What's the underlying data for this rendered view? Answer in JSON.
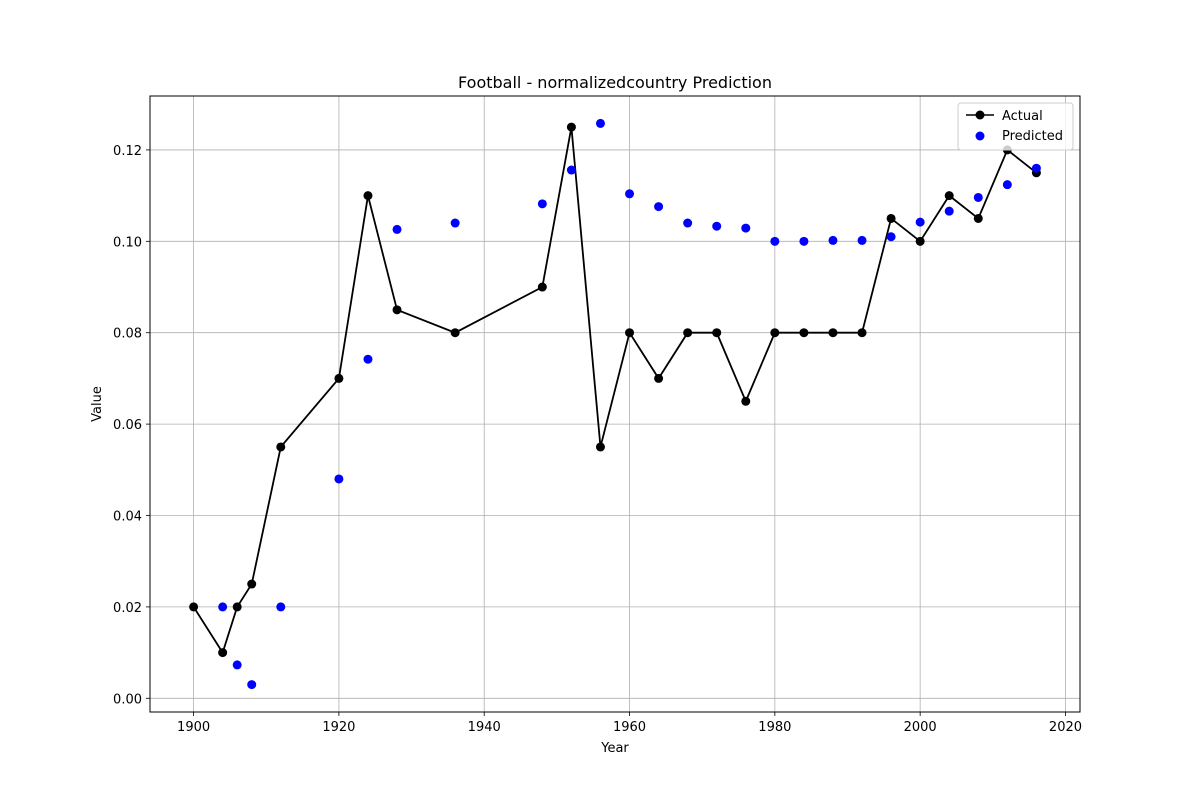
{
  "chart_data": {
    "type": "line",
    "title": "Football - normalizedcountry Prediction",
    "xlabel": "Year",
    "ylabel": "Value",
    "xlim": [
      1894,
      2022
    ],
    "ylim": [
      -0.003,
      0.1318
    ],
    "x_ticks": [
      1900,
      1920,
      1940,
      1960,
      1980,
      2000,
      2020
    ],
    "y_ticks": [
      0.0,
      0.02,
      0.04,
      0.06,
      0.08,
      0.1,
      0.12
    ],
    "y_tick_labels": [
      "0.00",
      "0.02",
      "0.04",
      "0.06",
      "0.08",
      "0.10",
      "0.12"
    ],
    "grid": true,
    "legend_position": "top-right",
    "colors": {
      "actual": "#000000",
      "predicted": "#0000ff"
    },
    "series": [
      {
        "name": "Actual",
        "style": "line-with-markers",
        "x": [
          1900,
          1904,
          1906,
          1908,
          1912,
          1920,
          1924,
          1928,
          1936,
          1948,
          1952,
          1956,
          1960,
          1964,
          1968,
          1972,
          1976,
          1980,
          1984,
          1988,
          1992,
          1996,
          2000,
          2004,
          2008,
          2012,
          2016
        ],
        "y": [
          0.02,
          0.01,
          0.02,
          0.025,
          0.055,
          0.07,
          0.11,
          0.085,
          0.08,
          0.09,
          0.125,
          0.055,
          0.08,
          0.07,
          0.08,
          0.08,
          0.065,
          0.08,
          0.08,
          0.08,
          0.08,
          0.105,
          0.1,
          0.11,
          0.105,
          0.12,
          0.115
        ]
      },
      {
        "name": "Predicted",
        "style": "scatter",
        "x": [
          1904,
          1906,
          1908,
          1912,
          1920,
          1924,
          1928,
          1936,
          1948,
          1952,
          1956,
          1960,
          1964,
          1968,
          1972,
          1976,
          1980,
          1984,
          1988,
          1992,
          1996,
          2000,
          2004,
          2008,
          2012,
          2016
        ],
        "y": [
          0.02,
          0.0073,
          0.003,
          0.02,
          0.048,
          0.0742,
          0.1026,
          0.104,
          0.1082,
          0.1156,
          0.1258,
          0.1104,
          0.1076,
          0.104,
          0.1033,
          0.1029,
          0.1,
          0.1,
          0.1002,
          0.1002,
          0.101,
          0.1042,
          0.1066,
          0.1096,
          0.1124,
          0.116
        ]
      }
    ]
  }
}
